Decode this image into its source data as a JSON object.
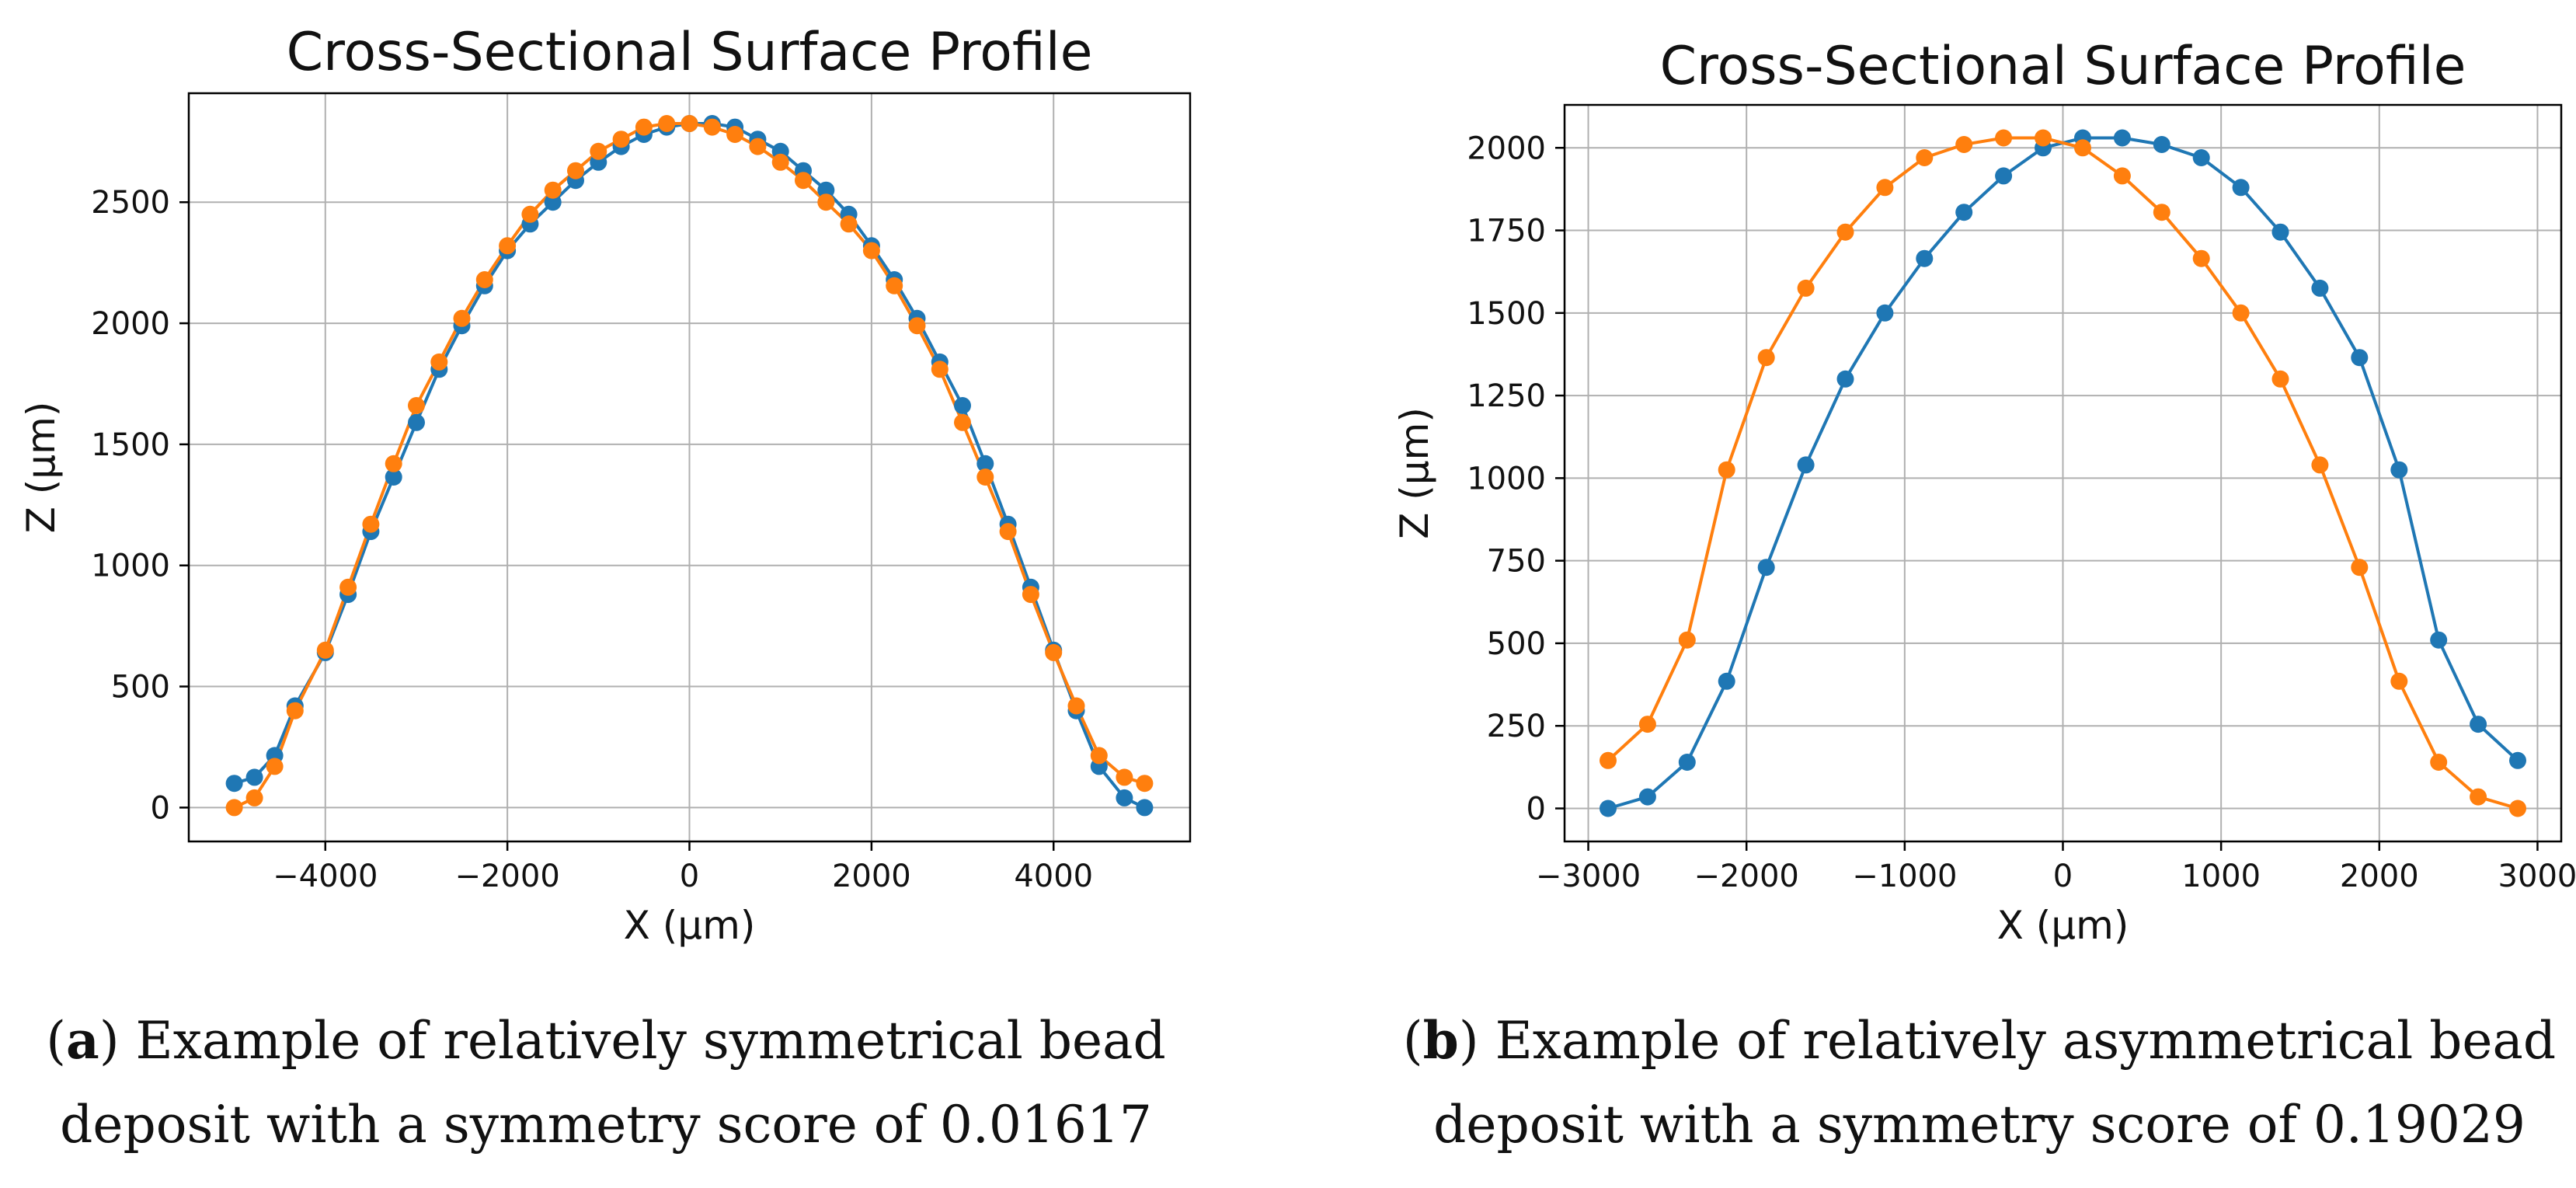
{
  "colors": {
    "series_blue": "#1f77b4",
    "series_orange": "#ff7f0e",
    "grid": "#b0b0b0",
    "axis": "#000000",
    "text": "#111111"
  },
  "captions": {
    "a": {
      "letter": "a",
      "text": "Example of relatively symmetrical bead",
      "line2": "deposit with a symmetry score of 0.01617"
    },
    "b": {
      "letter": "b",
      "text": "Example of relatively asymmetrical bead",
      "line2": "deposit with a symmetry score of 0.19029"
    }
  },
  "chart_data": [
    {
      "type": "line",
      "title": "Cross-Sectional Surface Profile",
      "xlabel": "X (µm)",
      "ylabel": "Z (µm)",
      "xlim": [
        -5500,
        5500
      ],
      "ylim": [
        -140,
        2950
      ],
      "xticks": [
        -4000,
        -2000,
        0,
        2000,
        4000
      ],
      "xtick_labels": [
        "−4000",
        "−2000",
        "0",
        "2000",
        "4000"
      ],
      "yticks": [
        0,
        500,
        1000,
        1500,
        2000,
        2500
      ],
      "ytick_labels": [
        "0",
        "500",
        "1000",
        "1500",
        "2000",
        "2500"
      ],
      "grid": true,
      "x": [
        -5000,
        -4778,
        -4556,
        -4333,
        -4000,
        -3750,
        -3500,
        -3250,
        -3000,
        -2750,
        -2500,
        -2250,
        -2000,
        -1750,
        -1500,
        -1250,
        -1000,
        -750,
        -500,
        -250,
        0,
        250,
        500,
        750,
        1000,
        1250,
        1500,
        1750,
        2000,
        2250,
        2500,
        2750,
        3000,
        3250,
        3500,
        3750,
        4000,
        4250,
        4500,
        4778,
        5000
      ],
      "series": [
        {
          "name": "blue",
          "values": [
            100,
            125,
            215,
            420,
            640,
            880,
            1140,
            1365,
            1590,
            1810,
            1990,
            2155,
            2300,
            2410,
            2500,
            2590,
            2665,
            2730,
            2780,
            2810,
            2825,
            2825,
            2810,
            2760,
            2710,
            2630,
            2550,
            2450,
            2320,
            2180,
            2020,
            1840,
            1660,
            1420,
            1170,
            910,
            650,
            400,
            170,
            40,
            0
          ]
        },
        {
          "name": "orange",
          "values": [
            0,
            40,
            170,
            400,
            650,
            910,
            1170,
            1420,
            1660,
            1840,
            2020,
            2180,
            2320,
            2450,
            2550,
            2630,
            2710,
            2760,
            2810,
            2825,
            2825,
            2810,
            2780,
            2730,
            2665,
            2590,
            2500,
            2410,
            2300,
            2155,
            1990,
            1810,
            1590,
            1365,
            1140,
            880,
            640,
            420,
            215,
            125,
            100
          ]
        }
      ]
    },
    {
      "type": "line",
      "title": "Cross-Sectional Surface Profile",
      "xlabel": "X (µm)",
      "ylabel": "Z (µm)",
      "xlim": [
        -3150,
        3150
      ],
      "ylim": [
        -100,
        2130
      ],
      "xticks": [
        -3000,
        -2000,
        -1000,
        0,
        1000,
        2000,
        3000
      ],
      "xtick_labels": [
        "−3000",
        "−2000",
        "−1000",
        "0",
        "1000",
        "2000",
        "3000"
      ],
      "yticks": [
        0,
        250,
        500,
        750,
        1000,
        1250,
        1500,
        1750,
        2000
      ],
      "ytick_labels": [
        "0",
        "250",
        "500",
        "750",
        "1000",
        "1250",
        "1500",
        "1750",
        "2000"
      ],
      "grid": true,
      "x": [
        -2875,
        -2625,
        -2375,
        -2125,
        -1875,
        -1625,
        -1375,
        -1125,
        -875,
        -625,
        -375,
        -125,
        125,
        375,
        625,
        875,
        1125,
        1375,
        1625,
        1875,
        2125,
        2375,
        2625,
        2875
      ],
      "series": [
        {
          "name": "blue",
          "values": [
            0,
            35,
            140,
            385,
            730,
            1040,
            1300,
            1500,
            1665,
            1805,
            1915,
            2000,
            2030,
            2030,
            2010,
            1970,
            1880,
            1745,
            1575,
            1365,
            1025,
            510,
            255,
            145
          ]
        },
        {
          "name": "orange",
          "values": [
            145,
            255,
            510,
            1025,
            1365,
            1575,
            1745,
            1880,
            1970,
            2010,
            2030,
            2030,
            2000,
            1915,
            1805,
            1665,
            1500,
            1300,
            1040,
            730,
            385,
            140,
            35,
            0
          ]
        }
      ]
    }
  ]
}
